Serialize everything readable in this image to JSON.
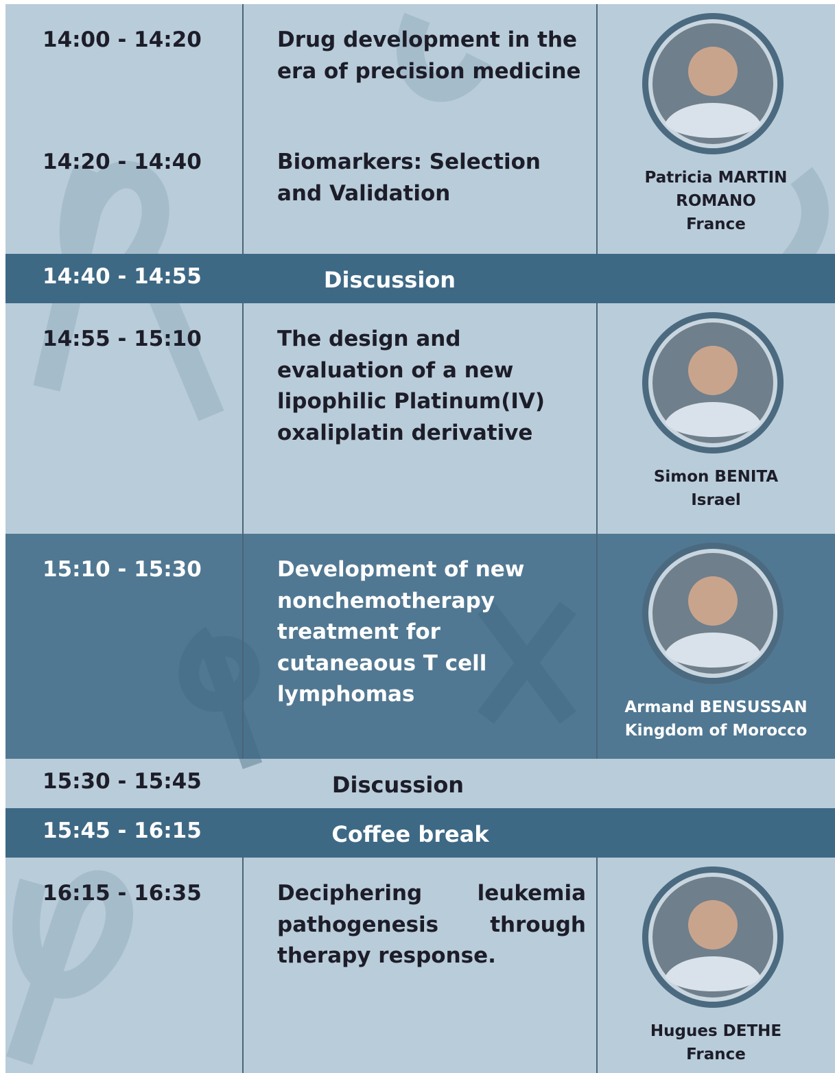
{
  "program": [
    {
      "talks": [
        {
          "time": "14:00 - 14:20",
          "title": "Drug development in the era of precision medicine"
        },
        {
          "time": "14:20 - 14:40",
          "title": "Biomarkers: Selection and Validation"
        }
      ],
      "speaker": {
        "name_lines": [
          "Patricia MARTIN",
          "ROMANO"
        ],
        "country": "France"
      }
    },
    {
      "time": "14:40 - 14:55",
      "label": "Discussion"
    },
    {
      "talks": [
        {
          "time": "14:55 - 15:10",
          "title": "The design and evaluation of a new lipophilic Platinum(IV) oxaliplatin  derivative"
        }
      ],
      "speaker": {
        "name_lines": [
          "Simon BENITA"
        ],
        "country": "Israel"
      }
    },
    {
      "talks": [
        {
          "time": "15:10 - 15:30",
          "title": "Development of new nonchemotherapy treatment for cutaneaous T cell lymphomas"
        }
      ],
      "speaker": {
        "name_lines": [
          "Armand  BENSUSSAN"
        ],
        "country": "Kingdom of Morocco"
      }
    },
    {
      "time": "15:30 - 15:45",
      "label": "Discussion"
    },
    {
      "time": "15:45 - 16:15",
      "label": "Coffee break"
    },
    {
      "talks": [
        {
          "time": "16:15 - 16:35",
          "title": "Deciphering leukemia pathogenesis through therapy response."
        }
      ],
      "speaker": {
        "name_lines": [
          "Hugues DETHE"
        ],
        "country": "France"
      }
    }
  ]
}
